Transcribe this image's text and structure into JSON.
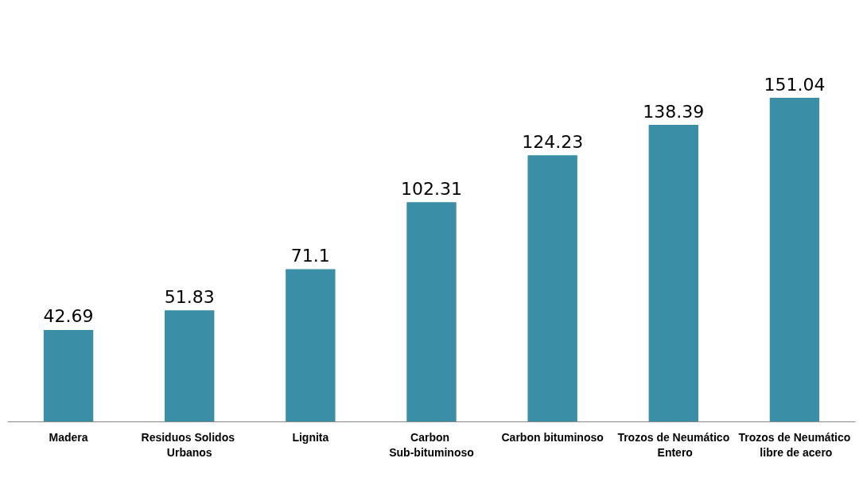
{
  "chart_data": {
    "type": "bar",
    "categories": [
      "Madera",
      "Residuos Solidos Urbanos",
      "Lignita",
      "Carbon Sub-bituminoso",
      "Carbon bituminoso",
      "Trozos de Neumático Entero",
      "Trozos de Neumático libre de acero"
    ],
    "values": [
      42.69,
      51.83,
      71.1,
      102.31,
      124.23,
      138.39,
      151.04
    ],
    "color": "#3a8ea5",
    "data_labels": true
  }
}
